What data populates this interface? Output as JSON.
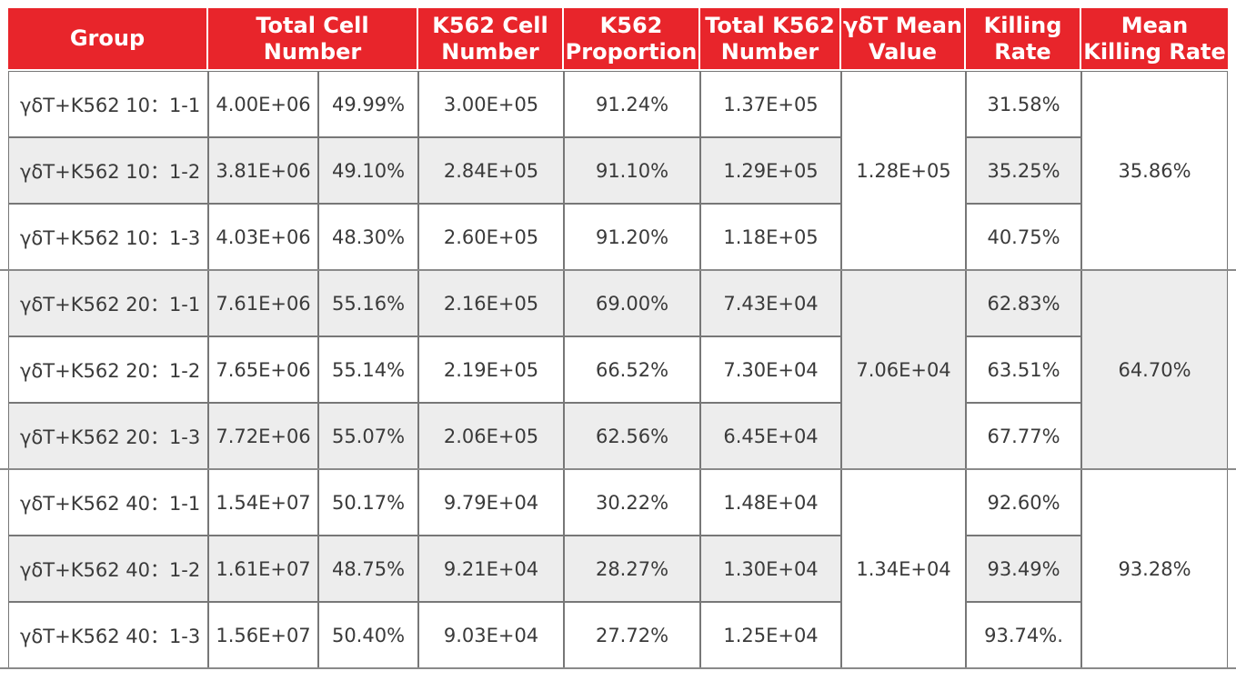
{
  "header": {
    "group": "Group",
    "total_cell_number": "Total Cell Number",
    "k562_cell_number": "K562 Cell Number",
    "k562_proportion": "K562 Proportion",
    "total_k562_number": "Total K562 Number",
    "gdt_mean_value": "γδT Mean Value",
    "killing_rate": "Killing Rate",
    "mean_killing_rate": "Mean Killing Rate"
  },
  "rows": [
    {
      "group": "γδT+K562 10：1-1",
      "total": "4.00E+06",
      "pct": "49.99%",
      "k562_cell": "3.00E+05",
      "k562_prop": "91.24%",
      "total_k562": "1.37E+05",
      "killing": "31.58%"
    },
    {
      "group": "γδT+K562 10：1-2",
      "total": "3.81E+06",
      "pct": "49.10%",
      "k562_cell": "2.84E+05",
      "k562_prop": "91.10%",
      "total_k562": "1.29E+05",
      "killing": "35.25%"
    },
    {
      "group": "γδT+K562 10：1-3",
      "total": "4.03E+06",
      "pct": "48.30%",
      "k562_cell": "2.60E+05",
      "k562_prop": "91.20%",
      "total_k562": "1.18E+05",
      "killing": "40.75%"
    },
    {
      "group": "γδT+K562 20：1-1",
      "total": "7.61E+06",
      "pct": "55.16%",
      "k562_cell": "2.16E+05",
      "k562_prop": "69.00%",
      "total_k562": "7.43E+04",
      "killing": "62.83%"
    },
    {
      "group": "γδT+K562 20：1-2",
      "total": "7.65E+06",
      "pct": "55.14%",
      "k562_cell": "2.19E+05",
      "k562_prop": "66.52%",
      "total_k562": "7.30E+04",
      "killing": "63.51%"
    },
    {
      "group": "γδT+K562 20：1-3",
      "total": "7.72E+06",
      "pct": "55.07%",
      "k562_cell": "2.06E+05",
      "k562_prop": "62.56%",
      "total_k562": "6.45E+04",
      "killing": "67.77%"
    },
    {
      "group": "γδT+K562 40：1-1",
      "total": "1.54E+07",
      "pct": "50.17%",
      "k562_cell": "9.79E+04",
      "k562_prop": "30.22%",
      "total_k562": "1.48E+04",
      "killing": "92.60%"
    },
    {
      "group": "γδT+K562 40：1-2",
      "total": "1.61E+07",
      "pct": "48.75%",
      "k562_cell": "9.21E+04",
      "k562_prop": "28.27%",
      "total_k562": "1.30E+04",
      "killing": "93.49%"
    },
    {
      "group": "γδT+K562 40：1-3",
      "total": "1.56E+07",
      "pct": "50.40%",
      "k562_cell": "9.03E+04",
      "k562_prop": "27.72%",
      "total_k562": "1.25E+04",
      "killing": "93.74%."
    }
  ],
  "groups": [
    {
      "gdt_mean": "1.28E+05",
      "mean_killing": "35.86%"
    },
    {
      "gdt_mean": "7.06E+04",
      "mean_killing": "64.70%"
    },
    {
      "gdt_mean": "1.34E+04",
      "mean_killing": "93.28%"
    }
  ],
  "colors": {
    "header_bg": "#e8252b",
    "header_text": "#ffffff",
    "row_gray": "#ededed",
    "text": "#3a3a3a"
  }
}
